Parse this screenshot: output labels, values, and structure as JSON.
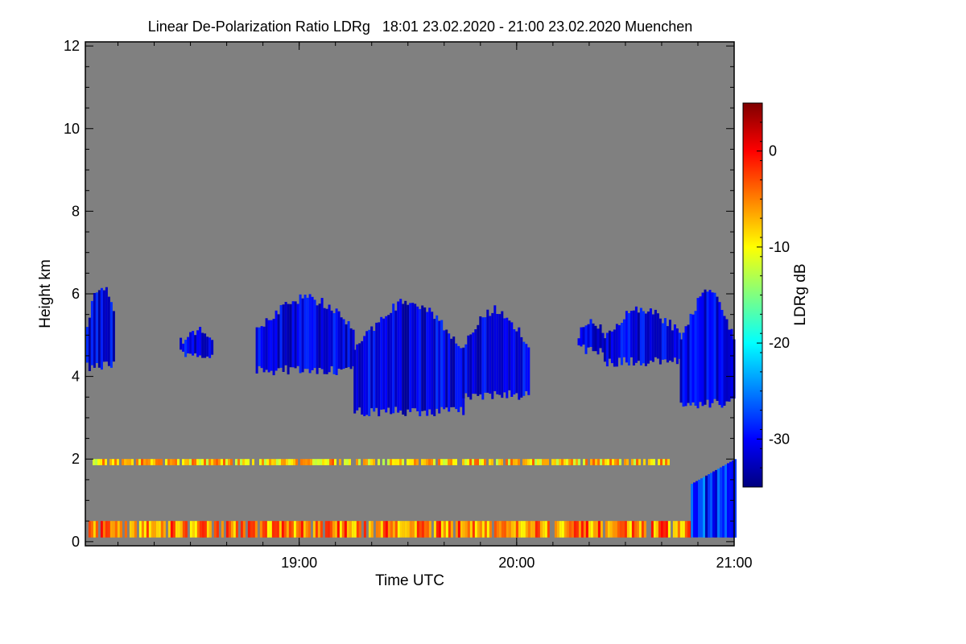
{
  "chart_data": {
    "type": "heatmap",
    "title": "Linear De-Polarization Ratio LDRg   18:01 23.02.2020 - 21:00 23.02.2020 Muenchen",
    "xlabel": "Time UTC",
    "ylabel": "Height km",
    "x_tick_labels": [
      "19:00",
      "20:00",
      "21:00"
    ],
    "x_ticks_hours": [
      19,
      20,
      21
    ],
    "xlim_hours": [
      18.0167,
      21.0
    ],
    "y_ticks": [
      0,
      2,
      4,
      6,
      8,
      10,
      12
    ],
    "ylim": [
      -0.1,
      12.1
    ],
    "background_color": "#808080",
    "colorbar": {
      "label": "LDRg dB",
      "range": [
        -35,
        5
      ],
      "ticks": [
        0,
        -10,
        -20,
        -30
      ],
      "colors": [
        "#00007f",
        "#0000ff",
        "#0080ff",
        "#00ffff",
        "#80ff80",
        "#ffff00",
        "#ff8000",
        "#ff0000",
        "#7f0000"
      ]
    },
    "features": [
      {
        "name": "upper cloud layer",
        "ldr_db": -31,
        "segments": [
          {
            "t0": 18.02,
            "t1": 18.15,
            "base": 4.2,
            "top": 6.2
          },
          {
            "t0": 18.45,
            "t1": 18.6,
            "base": 4.5,
            "top": 5.1
          },
          {
            "t0": 18.8,
            "t1": 19.25,
            "base": 4.1,
            "top": 5.9
          },
          {
            "t0": 19.25,
            "t1": 19.75,
            "base": 3.1,
            "top": 5.8
          },
          {
            "t0": 19.75,
            "t1": 20.05,
            "base": 3.5,
            "top": 5.6
          },
          {
            "t0": 20.28,
            "t1": 20.4,
            "base": 4.6,
            "top": 5.3
          },
          {
            "t0": 20.4,
            "t1": 20.75,
            "base": 4.3,
            "top": 5.6
          },
          {
            "t0": 20.75,
            "t1": 21.0,
            "base": 3.3,
            "top": 6.0
          }
        ]
      },
      {
        "name": "boundary layer aerosol",
        "ldr_db": -5,
        "base": 0.1,
        "top": 0.5,
        "t0": 18.02,
        "t1": 20.95
      },
      {
        "name": "lofted aerosol layer",
        "ldr_db": -8,
        "base": 1.85,
        "top": 2.0,
        "t0": 18.05,
        "t1": 20.7
      },
      {
        "name": "precipitation",
        "ldr_db": -28,
        "base": 0.1,
        "top": 2.0,
        "t0": 20.8,
        "t1": 21.0
      }
    ]
  }
}
